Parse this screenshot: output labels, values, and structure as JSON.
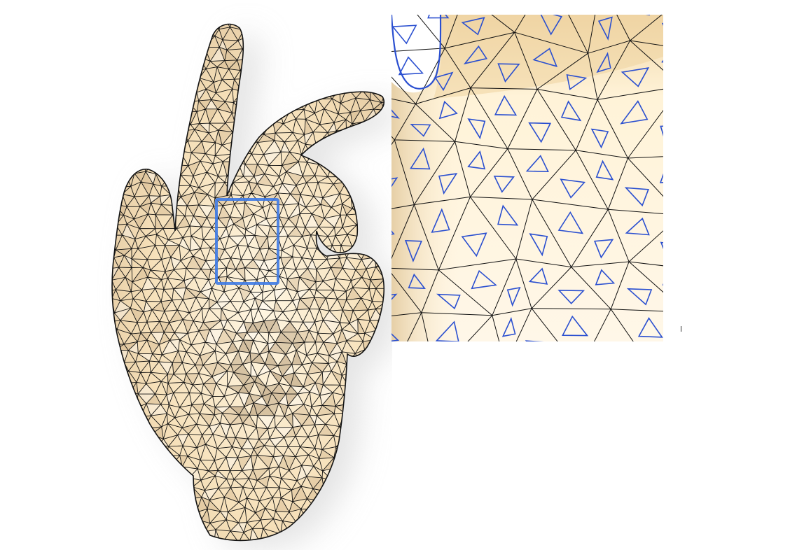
{
  "figure": {
    "left_panel": "hand-mesh-triangulation",
    "right_panel": "zoomed-detail-dual-mesh"
  },
  "colors": {
    "skin_light": "#fff6e2",
    "skin_mid": "#f3dcb4",
    "skin_dark": "#c9ad85",
    "edge": "#111111",
    "dual_edge": "#2a4fd0",
    "highlight_box": "#3f7be6",
    "shadow": "#d6d6d6"
  },
  "mesh": {
    "primal_edges": "triangle-mesh",
    "dual_edges": "voronoi-polygon-mesh"
  }
}
